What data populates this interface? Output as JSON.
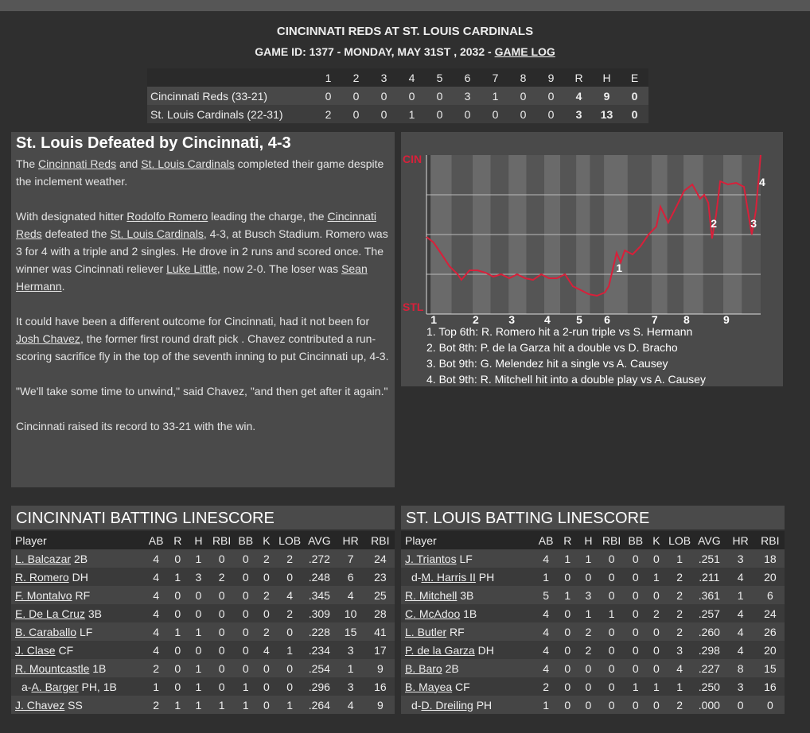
{
  "header": {
    "title": "CINCINNATI REDS AT ST. LOUIS CARDINALS",
    "subtitle": "GAME ID: 1377 - MONDAY, MAY 31ST , 2032 - ",
    "link": "GAME LOG"
  },
  "linescore": {
    "columns": [
      "1",
      "2",
      "3",
      "4",
      "5",
      "6",
      "7",
      "8",
      "9",
      "R",
      "H",
      "E"
    ],
    "rows": [
      {
        "team": "Cincinnati Reds (33-21)",
        "cells": [
          0,
          0,
          0,
          0,
          0,
          3,
          1,
          0,
          0,
          4,
          9,
          0
        ]
      },
      {
        "team": "St. Louis Cardinals (22-31)",
        "cells": [
          2,
          0,
          0,
          1,
          0,
          0,
          0,
          0,
          0,
          3,
          13,
          0
        ]
      }
    ]
  },
  "article": {
    "headline": "St. Louis Defeated by Cincinnati, 4-3",
    "paragraphs": [
      [
        "The ",
        {
          "link": "Cincinnati Reds"
        },
        " and ",
        {
          "link": "St. Louis Cardinals"
        },
        " completed their game despite the inclement weather."
      ],
      [
        "With designated hitter ",
        {
          "link": "Rodolfo Romero"
        },
        " leading the charge, the ",
        {
          "link": "Cincinnati Reds"
        },
        " defeated the ",
        {
          "link": "St. Louis Cardinals"
        },
        ", 4-3, at Busch Stadium. Romero was 3 for 4 with a triple and 2 singles. He drove in 2 runs and scored once. The winner was Cincinnati reliever ",
        {
          "link": "Luke Little"
        },
        ", now 2-0. The loser was ",
        {
          "link": "Sean Hermann"
        },
        "."
      ],
      [
        "It could have been a different outcome for Cincinnati, had it not been for ",
        {
          "link": "Josh Chavez"
        },
        ", the former first round draft pick . Chavez contributed a run-scoring sacrifice fly in the top of the seventh inning to put Cincinnati up, 4-3."
      ],
      [
        "\"We'll take some time to unwind,\" said Chavez, \"and then get after it again.\""
      ],
      [
        "Cincinnati raised its record to 33-21 with the win."
      ]
    ]
  },
  "chart_data": {
    "type": "line",
    "color": "#d8203a",
    "xlim": [
      0,
      9
    ],
    "ylim": [
      0,
      100
    ],
    "yticks": [
      {
        "value": 0,
        "label": "STL"
      },
      {
        "value": 100,
        "label": "CIN"
      }
    ],
    "grid_lines": [
      25,
      50,
      75
    ],
    "xticks": [
      {
        "value": 0.11,
        "label": "1"
      },
      {
        "value": 1.24,
        "label": "2"
      },
      {
        "value": 2.21,
        "label": "3"
      },
      {
        "value": 3.17,
        "label": "4"
      },
      {
        "value": 4.03,
        "label": "5"
      },
      {
        "value": 4.78,
        "label": "6"
      },
      {
        "value": 6.06,
        "label": "7"
      },
      {
        "value": 6.92,
        "label": "8"
      },
      {
        "value": 7.99,
        "label": "9"
      }
    ],
    "x": [
      0,
      0.19,
      0.41,
      0.62,
      0.84,
      0.94,
      1.16,
      1.37,
      1.59,
      1.8,
      2.01,
      2.23,
      2.44,
      2.66,
      2.87,
      3.09,
      3.3,
      3.51,
      3.73,
      3.94,
      4.16,
      4.37,
      4.59,
      4.8,
      4.91,
      5.01,
      5.12,
      5.23,
      5.34,
      5.55,
      5.76,
      5.98,
      6.19,
      6.3,
      6.51,
      6.73,
      6.94,
      7.16,
      7.37,
      7.48,
      7.59,
      7.69,
      7.8,
      7.91,
      8.12,
      8.34,
      8.55,
      8.76,
      8.87,
      9
    ],
    "values": [
      48.5,
      45,
      37.5,
      30,
      25,
      21.5,
      27.5,
      27.5,
      26,
      23.5,
      25,
      22.5,
      25,
      22.5,
      21.5,
      25,
      22.5,
      22.5,
      25,
      17.5,
      15,
      12.5,
      11.5,
      13.5,
      17.5,
      27.5,
      38.5,
      32.5,
      40,
      37.5,
      42.5,
      50,
      55,
      67.5,
      57.5,
      67.5,
      77.5,
      81.5,
      72.5,
      75,
      70,
      47.5,
      62.5,
      83.5,
      81.5,
      82.5,
      80,
      50,
      65,
      100
    ],
    "markers": [
      {
        "label": "1",
        "x": 5.19,
        "y": 26.5
      },
      {
        "label": "2",
        "x": 7.74,
        "y": 54.5
      },
      {
        "label": "3",
        "x": 8.81,
        "y": 54.5
      },
      {
        "label": "4",
        "x": 9.04,
        "y": 80.5
      }
    ],
    "notes": [
      "1. Top 6th: R. Romero hit a 2-run triple vs S. Hermann",
      "2. Bot 8th: P. de la Garza hit a double vs D. Bracho",
      "3. Bot 9th: G. Melendez hit a single vs A. Causey",
      "4. Bot 9th: R. Mitchell hit into a double play vs A. Causey"
    ]
  },
  "batting": [
    {
      "title": "CINCINNATI BATTING LINESCORE",
      "columns": [
        "Player",
        "AB",
        "R",
        "H",
        "RBI",
        "BB",
        "K",
        "LOB",
        "AVG",
        "HR",
        "RBI"
      ],
      "rows": [
        {
          "player": {
            "name": "L. Balcazar",
            "pos": "2B"
          },
          "stats": [
            4,
            0,
            1,
            0,
            0,
            2,
            2,
            ".272",
            7,
            24
          ]
        },
        {
          "player": {
            "name": "R. Romero",
            "pos": "DH"
          },
          "stats": [
            4,
            1,
            3,
            2,
            0,
            0,
            0,
            ".248",
            6,
            23
          ]
        },
        {
          "player": {
            "name": "F. Montalvo",
            "pos": "RF"
          },
          "stats": [
            4,
            0,
            0,
            0,
            0,
            2,
            4,
            ".345",
            4,
            25
          ]
        },
        {
          "player": {
            "name": "E. De La Cruz",
            "pos": "3B"
          },
          "stats": [
            4,
            0,
            0,
            0,
            0,
            0,
            2,
            ".309",
            10,
            28
          ]
        },
        {
          "player": {
            "name": "B. Caraballo",
            "pos": "LF"
          },
          "stats": [
            4,
            1,
            1,
            0,
            0,
            2,
            0,
            ".228",
            15,
            41
          ]
        },
        {
          "player": {
            "name": "J. Clase",
            "pos": "CF"
          },
          "stats": [
            4,
            0,
            0,
            0,
            0,
            4,
            1,
            ".234",
            3,
            17
          ]
        },
        {
          "player": {
            "name": "R. Mountcastle",
            "pos": "1B"
          },
          "stats": [
            2,
            0,
            1,
            0,
            0,
            0,
            0,
            ".254",
            1,
            9
          ]
        },
        {
          "player": {
            "prefix": "a-",
            "name": "A. Barger",
            "pos": "PH, 1B"
          },
          "stats": [
            1,
            0,
            1,
            0,
            1,
            0,
            0,
            ".296",
            3,
            16
          ]
        },
        {
          "player": {
            "name": "J. Chavez",
            "pos": "SS"
          },
          "stats": [
            2,
            1,
            1,
            1,
            1,
            0,
            1,
            ".264",
            4,
            9
          ]
        }
      ]
    },
    {
      "title": "ST. LOUIS BATTING LINESCORE",
      "columns": [
        "Player",
        "AB",
        "R",
        "H",
        "RBI",
        "BB",
        "K",
        "LOB",
        "AVG",
        "HR",
        "RBI"
      ],
      "rows": [
        {
          "player": {
            "name": "J. Triantos",
            "pos": "LF"
          },
          "stats": [
            4,
            1,
            1,
            0,
            0,
            0,
            1,
            ".251",
            3,
            18
          ]
        },
        {
          "player": {
            "prefix": "d-",
            "name": "M. Harris II",
            "pos": "PH"
          },
          "stats": [
            1,
            0,
            0,
            0,
            0,
            1,
            2,
            ".211",
            4,
            20
          ]
        },
        {
          "player": {
            "name": "R. Mitchell",
            "pos": "3B"
          },
          "stats": [
            5,
            1,
            3,
            0,
            0,
            0,
            2,
            ".361",
            1,
            6
          ]
        },
        {
          "player": {
            "name": "C. McAdoo",
            "pos": "1B"
          },
          "stats": [
            4,
            0,
            1,
            1,
            0,
            2,
            2,
            ".257",
            4,
            24
          ]
        },
        {
          "player": {
            "name": "L. Butler",
            "pos": "RF"
          },
          "stats": [
            4,
            0,
            2,
            0,
            0,
            0,
            2,
            ".260",
            4,
            26
          ]
        },
        {
          "player": {
            "name": "P. de la Garza",
            "pos": "DH"
          },
          "stats": [
            4,
            0,
            2,
            0,
            0,
            0,
            3,
            ".298",
            4,
            20
          ]
        },
        {
          "player": {
            "name": "B. Baro",
            "pos": "2B"
          },
          "stats": [
            4,
            0,
            0,
            0,
            0,
            0,
            4,
            ".227",
            8,
            15
          ]
        },
        {
          "player": {
            "name": "B. Mayea",
            "pos": "CF"
          },
          "stats": [
            2,
            0,
            0,
            0,
            1,
            1,
            1,
            ".250",
            3,
            16
          ]
        },
        {
          "player": {
            "prefix": "d-",
            "name": "D. Dreiling",
            "pos": "PH"
          },
          "stats": [
            1,
            0,
            0,
            0,
            0,
            0,
            2,
            ".000",
            0,
            0
          ]
        }
      ]
    }
  ]
}
